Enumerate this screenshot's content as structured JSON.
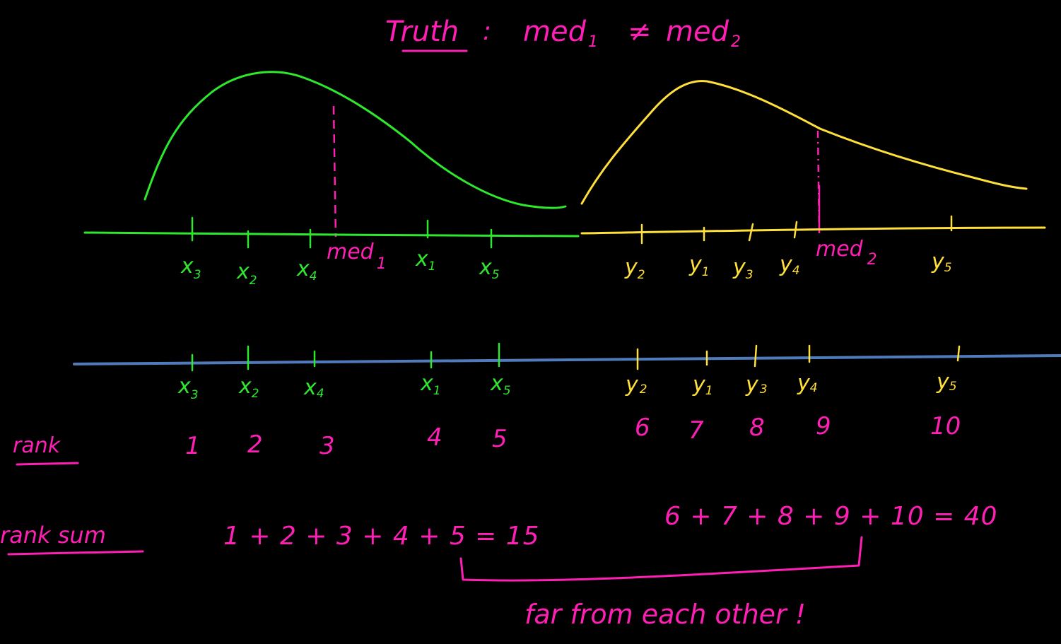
{
  "title": {
    "label": "Truth",
    "colon": ":",
    "med1": "med",
    "sub1": "1",
    "neq": "≠",
    "med2": "med",
    "sub2": "2"
  },
  "curves": {
    "group1_color": "#2ee82e",
    "group2_color": "#ffe03a",
    "median_color": "#ff1fb4"
  },
  "top_axis": {
    "x_labels": [
      {
        "base": "x",
        "sub": "3"
      },
      {
        "base": "x",
        "sub": "2"
      },
      {
        "base": "x",
        "sub": "4"
      },
      {
        "base": "x",
        "sub": "1"
      },
      {
        "base": "x",
        "sub": "5"
      }
    ],
    "y_labels": [
      {
        "base": "y",
        "sub": "2"
      },
      {
        "base": "y",
        "sub": "1"
      },
      {
        "base": "y",
        "sub": "3"
      },
      {
        "base": "y",
        "sub": "4"
      },
      {
        "base": "y",
        "sub": "5"
      }
    ],
    "med1": {
      "base": "med",
      "sub": "1"
    },
    "med2": {
      "base": "med",
      "sub": "2"
    }
  },
  "bottom_axis": {
    "axis_color": "#4f7bbd",
    "x_labels": [
      {
        "base": "x",
        "sub": "3"
      },
      {
        "base": "x",
        "sub": "2"
      },
      {
        "base": "x",
        "sub": "4"
      },
      {
        "base": "x",
        "sub": "1"
      },
      {
        "base": "x",
        "sub": "5"
      }
    ],
    "y_labels": [
      {
        "base": "y",
        "sub": "2"
      },
      {
        "base": "y",
        "sub": "1"
      },
      {
        "base": "y",
        "sub": "3"
      },
      {
        "base": "y",
        "sub": "4"
      },
      {
        "base": "y",
        "sub": "5"
      }
    ]
  },
  "rank": {
    "label": "rank",
    "values": [
      "1",
      "2",
      "3",
      "4",
      "5",
      "6",
      "7",
      "8",
      "9",
      "10"
    ]
  },
  "rank_sum": {
    "label": "rank sum",
    "group1": "1 + 2 + 3 + 4 + 5 = 15",
    "group2": "6 + 7 + 8 + 9 + 10 = 40"
  },
  "note": "far from each other !"
}
